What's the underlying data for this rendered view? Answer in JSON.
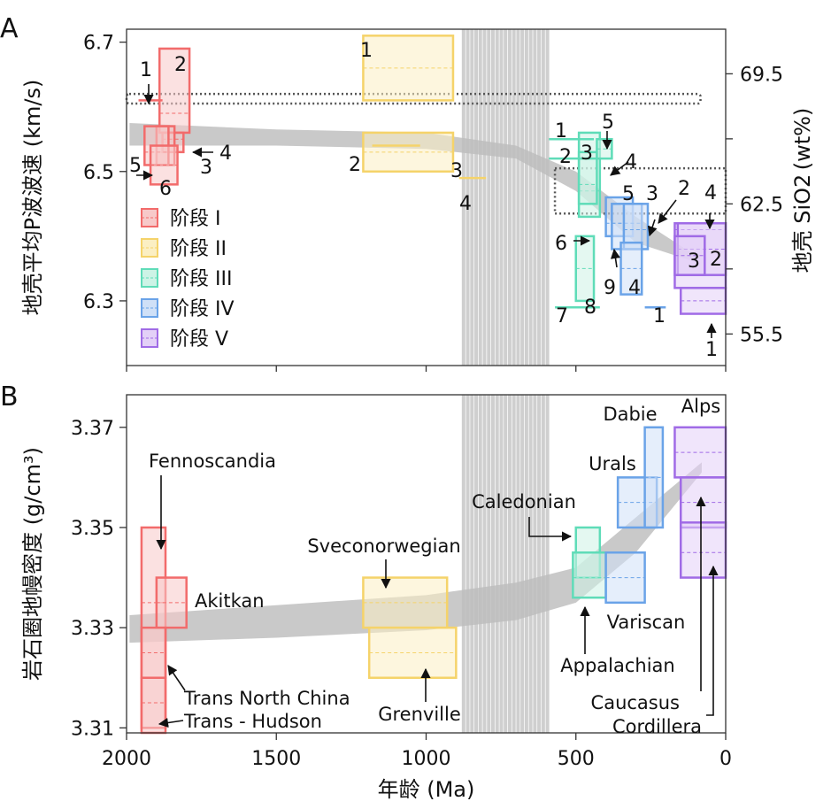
{
  "chart_data": [
    {
      "panel": "A",
      "type": "scatter",
      "xlabel": "年龄 (Ma)",
      "ylabel": "地壳平均P波波速 (km/s)",
      "y2label": "地壳 SiO2 (wt%)",
      "xlim": [
        2000,
        0
      ],
      "ylim": [
        6.2,
        6.72
      ],
      "y2lim": [
        53.8,
        71.9
      ],
      "xticks": [
        2000,
        1500,
        1000,
        500,
        0
      ],
      "yticks": [
        6.3,
        6.5,
        6.7
      ],
      "ytick_labels": [
        "6.3",
        "6.5",
        "6.7"
      ],
      "y2ticks": [
        55.5,
        62.5,
        69.5
      ],
      "y2tick_labels": [
        "55.5",
        "62.5",
        "69.5"
      ],
      "legend": {
        "position": "lower-left",
        "entries": [
          {
            "label": "阶段 I",
            "color": "#f26b6b"
          },
          {
            "label": "阶段 II",
            "color": "#f5d36a"
          },
          {
            "label": "阶段 III",
            "color": "#5fdcb8"
          },
          {
            "label": "阶段 IV",
            "color": "#6aa3e8"
          },
          {
            "label": "阶段 V",
            "color": "#a06be6"
          }
        ]
      },
      "boxes": [
        {
          "stage": "I",
          "label": "2",
          "x": [
            1890,
            1790
          ],
          "y": [
            6.56,
            6.69
          ],
          "mid": 6.59
        },
        {
          "stage": "I",
          "label": "4",
          "x": [
            1880,
            1810
          ],
          "y": [
            6.53,
            6.56
          ],
          "mid": 6.55
        },
        {
          "stage": "I",
          "label": "3",
          "x": [
            1900,
            1840
          ],
          "y": [
            6.51,
            6.57
          ],
          "mid": 6.54
        },
        {
          "stage": "I",
          "label": "6",
          "x": [
            1940,
            1860
          ],
          "y": [
            6.51,
            6.57
          ],
          "mid": 6.53
        },
        {
          "stage": "I",
          "label": "5",
          "x": [
            1920,
            1830
          ],
          "y": [
            6.48,
            6.54
          ],
          "mid": 6.51
        },
        {
          "stage": "II",
          "label": "1",
          "x": [
            1210,
            910
          ],
          "y": [
            6.61,
            6.71
          ],
          "mid": 6.66
        },
        {
          "stage": "II",
          "label": "2",
          "x": [
            1210,
            910
          ],
          "y": [
            6.5,
            6.56
          ],
          "mid": 6.53
        },
        {
          "stage": "III",
          "label": "2",
          "x": [
            490,
            420
          ],
          "y": [
            6.43,
            6.56
          ],
          "mid": 6.47
        },
        {
          "stage": "III",
          "label": "6",
          "x": [
            490,
            430
          ],
          "y": [
            6.45,
            6.53
          ],
          "mid": 6.48
        },
        {
          "stage": "III",
          "label": "8",
          "x": [
            500,
            440
          ],
          "y": [
            6.3,
            6.4
          ],
          "mid": 6.35
        },
        {
          "stage": "III",
          "label": "5",
          "x": [
            430,
            380
          ],
          "y": [
            6.52,
            6.55
          ],
          "mid": 6.535
        },
        {
          "stage": "IV",
          "label": "3",
          "x": [
            400,
            310
          ],
          "y": [
            6.4,
            6.46
          ],
          "mid": 6.42
        },
        {
          "stage": "IV",
          "label": "5",
          "x": [
            380,
            280
          ],
          "y": [
            6.38,
            6.45
          ],
          "mid": 6.42
        },
        {
          "stage": "IV",
          "label": "2",
          "x": [
            340,
            260
          ],
          "y": [
            6.38,
            6.45
          ],
          "mid": 6.41
        },
        {
          "stage": "IV",
          "label": "4",
          "x": [
            350,
            280
          ],
          "y": [
            6.31,
            6.39
          ],
          "mid": 6.35
        },
        {
          "stage": "V",
          "label": "4",
          "x": [
            170,
            0
          ],
          "y": [
            6.32,
            6.42
          ],
          "mid": 6.41
        },
        {
          "stage": "V",
          "label": "2",
          "x": [
            160,
            0
          ],
          "y": [
            6.34,
            6.42
          ],
          "mid": 6.38
        },
        {
          "stage": "V",
          "label": "3",
          "x": [
            170,
            70
          ],
          "y": [
            6.34,
            6.4
          ],
          "mid": 6.37
        },
        {
          "stage": "V",
          "label": "1",
          "x": [
            150,
            0
          ],
          "y": [
            6.28,
            6.32
          ],
          "mid": 6.3
        }
      ],
      "lines": [
        {
          "stage": "I",
          "label": "1",
          "x": [
            1960,
            1880
          ],
          "y": 6.61
        },
        {
          "stage": "II",
          "label": "3",
          "x": [
            1180,
            1020
          ],
          "y": 6.54
        },
        {
          "stage": "II",
          "label": "4",
          "x": [
            890,
            800
          ],
          "y": 6.49
        },
        {
          "stage": "III",
          "label": "1",
          "x": [
            590,
            440
          ],
          "y": 6.55
        },
        {
          "stage": "III",
          "label": "7",
          "x": [
            590,
            430
          ],
          "y": 6.52
        },
        {
          "stage": "III",
          "label": "9",
          "x": [
            570,
            420
          ],
          "y": 6.29
        },
        {
          "stage": "IV",
          "label": "3",
          "x": [
            270,
            200
          ],
          "y": 6.29
        }
      ],
      "annotations": [
        "1",
        "2",
        "3",
        "4",
        "5",
        "6",
        "1",
        "2",
        "3",
        "4",
        "1",
        "2",
        "3",
        "4",
        "5",
        "6",
        "7",
        "8",
        "9",
        "1",
        "2",
        "3",
        "4",
        "5",
        "1",
        "2",
        "3",
        "4"
      ]
    },
    {
      "panel": "B",
      "type": "scatter",
      "xlabel": "年龄 (Ma)",
      "ylabel": "岩石圈地幔密度 (g/cm³)",
      "xlim": [
        2000,
        0
      ],
      "ylim": [
        3.309,
        3.3765
      ],
      "xticks": [
        2000,
        1500,
        1000,
        500,
        0
      ],
      "xtick_labels": [
        "2000",
        "1500",
        "1000",
        "500",
        "0"
      ],
      "yticks": [
        3.31,
        3.33,
        3.35,
        3.37
      ],
      "ytick_labels": [
        "3.31",
        "3.33",
        "3.35",
        "3.37"
      ],
      "boxes": [
        {
          "stage": "I",
          "name": "Fennoscandia",
          "x": [
            1950,
            1870
          ],
          "y": [
            3.32,
            3.35
          ],
          "mid": 3.335
        },
        {
          "stage": "I",
          "name": "Akitkan",
          "x": [
            1900,
            1800
          ],
          "y": [
            3.33,
            3.34
          ],
          "mid": 3.335
        },
        {
          "stage": "I",
          "name": "Trans North China",
          "x": [
            1950,
            1870
          ],
          "y": [
            3.31,
            3.33
          ],
          "mid": 3.325
        },
        {
          "stage": "I",
          "name": "Trans - Hudson",
          "x": [
            1950,
            1870
          ],
          "y": [
            3.309,
            3.32
          ],
          "mid": 3.315
        },
        {
          "stage": "II",
          "name": "Sveconorwegian",
          "x": [
            1210,
            930
          ],
          "y": [
            3.33,
            3.34
          ],
          "mid": 3.335
        },
        {
          "stage": "II",
          "name": "Grenville",
          "x": [
            1190,
            900
          ],
          "y": [
            3.32,
            3.33
          ],
          "mid": 3.325
        },
        {
          "stage": "III",
          "name": "Caledonian",
          "x": [
            500,
            420
          ],
          "y": [
            3.34,
            3.35
          ],
          "mid": 3.345
        },
        {
          "stage": "III",
          "name": "Appalachian",
          "x": [
            510,
            400
          ],
          "y": [
            3.336,
            3.345
          ],
          "mid": 3.34
        },
        {
          "stage": "IV",
          "name": "Variscan",
          "x": [
            400,
            270
          ],
          "y": [
            3.335,
            3.345
          ],
          "mid": 3.34
        },
        {
          "stage": "IV",
          "name": "Urals",
          "x": [
            360,
            230
          ],
          "y": [
            3.35,
            3.36
          ],
          "mid": 3.355
        },
        {
          "stage": "IV",
          "name": "Dabie",
          "x": [
            270,
            210
          ],
          "y": [
            3.35,
            3.37
          ],
          "mid": 3.36
        },
        {
          "stage": "V",
          "name": "Alps",
          "x": [
            170,
            0
          ],
          "y": [
            3.36,
            3.37
          ],
          "mid": 3.365
        },
        {
          "stage": "V",
          "name": "Caucasus",
          "x": [
            150,
            0
          ],
          "y": [
            3.35,
            3.36
          ],
          "mid": 3.355
        },
        {
          "stage": "V",
          "name": "Cordillera",
          "x": [
            150,
            0
          ],
          "y": [
            3.34,
            3.351
          ],
          "mid": 3.345
        }
      ],
      "annotations": [
        "Fennoscandia",
        "Akitkan",
        "Trans North China",
        "Trans - Hudson",
        "Sveconorwegian",
        "Grenville",
        "Caledonian",
        "Appalachian",
        "Variscan",
        "Urals",
        "Dabie",
        "Alps",
        "Caucasus",
        "Cordillera"
      ]
    }
  ],
  "panel_letters": [
    "A",
    "B"
  ]
}
